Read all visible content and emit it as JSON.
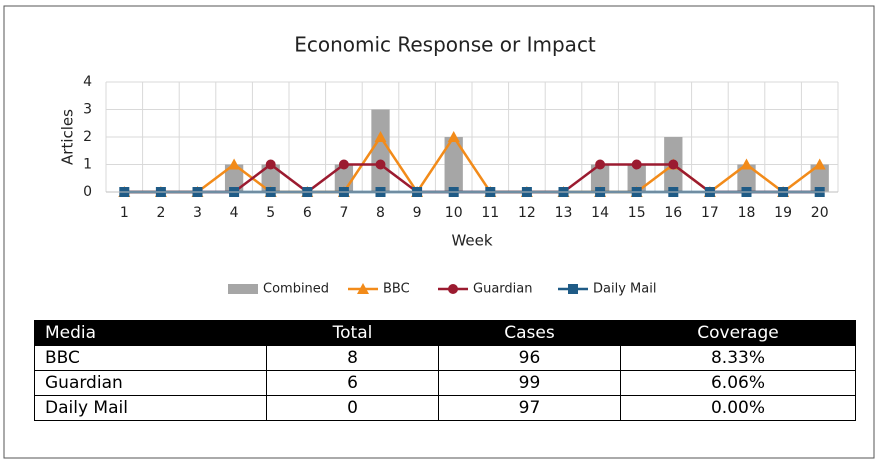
{
  "chart_data": {
    "type": "combo",
    "title": "Economic Response or Impact",
    "x_label": "Week",
    "y_label": "Articles",
    "categories": [
      1,
      2,
      3,
      4,
      5,
      6,
      7,
      8,
      9,
      10,
      11,
      12,
      13,
      14,
      15,
      16,
      17,
      18,
      19,
      20
    ],
    "ylim": [
      0,
      4
    ],
    "yticks": [
      0,
      1,
      2,
      3,
      4
    ],
    "grid": true,
    "series": [
      {
        "name": "Combined",
        "kind": "bar",
        "color": "#a6a6a6",
        "values": [
          0,
          0,
          0,
          1,
          1,
          0,
          1,
          3,
          0,
          2,
          0,
          0,
          0,
          1,
          1,
          2,
          0,
          1,
          0,
          1
        ]
      },
      {
        "name": "BBC",
        "kind": "line",
        "marker": "triangle",
        "color": "#f28b1a",
        "values": [
          0,
          0,
          0,
          1,
          0,
          0,
          0,
          2,
          0,
          2,
          0,
          0,
          0,
          0,
          0,
          1,
          0,
          1,
          0,
          1
        ]
      },
      {
        "name": "Guardian",
        "kind": "line",
        "marker": "circle",
        "color": "#9b1b30",
        "values": [
          0,
          0,
          0,
          0,
          1,
          0,
          1,
          1,
          0,
          0,
          0,
          0,
          0,
          1,
          1,
          1,
          0,
          0,
          0,
          0
        ]
      },
      {
        "name": "Daily Mail",
        "kind": "line",
        "marker": "square",
        "color": "#1f5b86",
        "values": [
          0,
          0,
          0,
          0,
          0,
          0,
          0,
          0,
          0,
          0,
          0,
          0,
          0,
          0,
          0,
          0,
          0,
          0,
          0,
          0
        ]
      }
    ]
  },
  "table": {
    "header": [
      "Media",
      "Total",
      "Cases",
      "Coverage"
    ],
    "rows": [
      [
        "BBC",
        "8",
        "96",
        "8.33%"
      ],
      [
        "Guardian",
        "6",
        "99",
        "6.06%"
      ],
      [
        "Daily Mail",
        "0",
        "97",
        "0.00%"
      ]
    ]
  }
}
